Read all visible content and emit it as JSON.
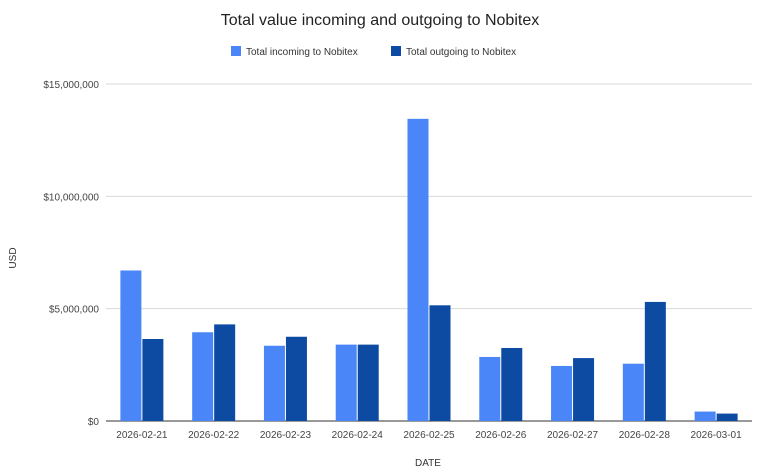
{
  "chart_data": {
    "type": "bar",
    "title": "Total value incoming and outgoing to Nobitex",
    "xlabel": "DATE",
    "ylabel": "USD",
    "categories": [
      "2026-02-21",
      "2026-02-22",
      "2026-02-23",
      "2026-02-24",
      "2026-02-25",
      "2026-02-26",
      "2026-02-27",
      "2026-02-28",
      "2026-03-01"
    ],
    "series": [
      {
        "name": "Total incoming to Nobitex",
        "color": "#4a86f7",
        "values": [
          6700000,
          3950000,
          3350000,
          3400000,
          13450000,
          2850000,
          2450000,
          2550000,
          420000
        ]
      },
      {
        "name": "Total outgoing to Nobitex",
        "color": "#0d4aa1",
        "values": [
          3650000,
          4300000,
          3750000,
          3400000,
          5150000,
          3250000,
          2800000,
          5300000,
          330000
        ]
      }
    ],
    "ylim": [
      0,
      15000000
    ],
    "yticks": [
      0,
      5000000,
      10000000,
      15000000
    ],
    "ytick_labels": [
      "$0",
      "$5,000,000",
      "$10,000,000",
      "$15,000,000"
    ],
    "grid": true,
    "legend_position": "top"
  }
}
